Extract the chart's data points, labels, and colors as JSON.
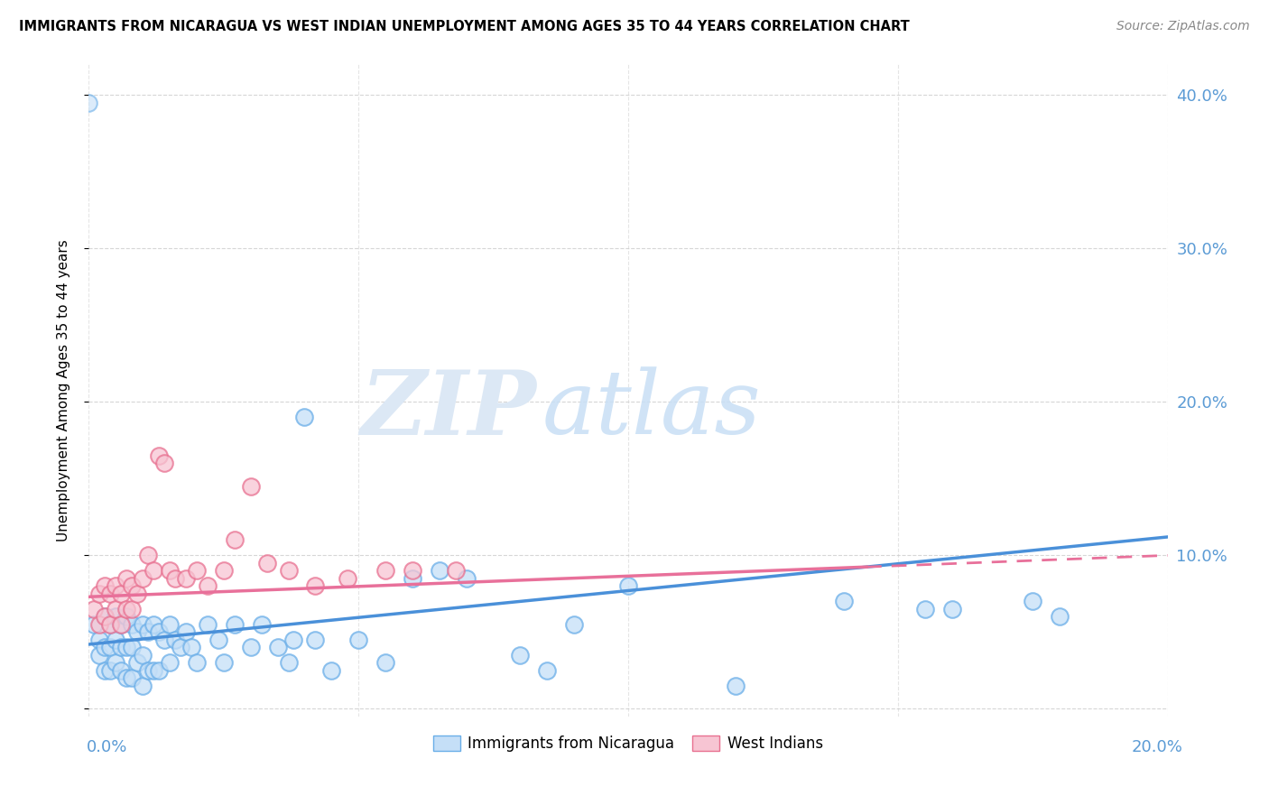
{
  "title": "IMMIGRANTS FROM NICARAGUA VS WEST INDIAN UNEMPLOYMENT AMONG AGES 35 TO 44 YEARS CORRELATION CHART",
  "source": "Source: ZipAtlas.com",
  "ylabel": "Unemployment Among Ages 35 to 44 years",
  "xlim": [
    0.0,
    0.2
  ],
  "ylim": [
    -0.005,
    0.42
  ],
  "watermark_zip": "ZIP",
  "watermark_atlas": "atlas",
  "color_nicaragua_fill": "#c5dff7",
  "color_nicaragua_edge": "#6aaee8",
  "color_west_indian_fill": "#f7c5d3",
  "color_west_indian_edge": "#e87090",
  "color_blue_line": "#4a90d9",
  "color_pink_line": "#e8709a",
  "color_text_blue": "#5b9bd5",
  "color_grid": "#cccccc",
  "background_color": "#ffffff",
  "fig_width": 14.06,
  "fig_height": 8.92,
  "dpi": 100,
  "nic_x": [
    0.001,
    0.002,
    0.002,
    0.003,
    0.003,
    0.003,
    0.004,
    0.004,
    0.004,
    0.005,
    0.005,
    0.005,
    0.006,
    0.006,
    0.006,
    0.007,
    0.007,
    0.007,
    0.008,
    0.008,
    0.008,
    0.009,
    0.009,
    0.01,
    0.01,
    0.01,
    0.011,
    0.011,
    0.012,
    0.012,
    0.013,
    0.013,
    0.014,
    0.015,
    0.015,
    0.016,
    0.017,
    0.018,
    0.019,
    0.02,
    0.022,
    0.024,
    0.025,
    0.027,
    0.03,
    0.032,
    0.035,
    0.037,
    0.04,
    0.042,
    0.045,
    0.05,
    0.055,
    0.06,
    0.065,
    0.07,
    0.038,
    0.08,
    0.085,
    0.09,
    0.1,
    0.12,
    0.14,
    0.16,
    0.175,
    0.18,
    0.155
  ],
  "nic_y": [
    0.055,
    0.045,
    0.035,
    0.06,
    0.04,
    0.025,
    0.055,
    0.04,
    0.025,
    0.06,
    0.045,
    0.03,
    0.055,
    0.04,
    0.025,
    0.06,
    0.04,
    0.02,
    0.055,
    0.04,
    0.02,
    0.05,
    0.03,
    0.055,
    0.035,
    0.015,
    0.05,
    0.025,
    0.055,
    0.025,
    0.05,
    0.025,
    0.045,
    0.055,
    0.03,
    0.045,
    0.04,
    0.05,
    0.04,
    0.03,
    0.055,
    0.045,
    0.03,
    0.055,
    0.04,
    0.055,
    0.04,
    0.03,
    0.19,
    0.045,
    0.025,
    0.045,
    0.03,
    0.085,
    0.09,
    0.085,
    0.045,
    0.035,
    0.025,
    0.055,
    0.08,
    0.015,
    0.07,
    0.065,
    0.07,
    0.06,
    0.065
  ],
  "wi_x": [
    0.001,
    0.002,
    0.002,
    0.003,
    0.003,
    0.004,
    0.004,
    0.005,
    0.005,
    0.006,
    0.006,
    0.007,
    0.007,
    0.008,
    0.008,
    0.009,
    0.01,
    0.011,
    0.012,
    0.013,
    0.014,
    0.015,
    0.016,
    0.018,
    0.02,
    0.022,
    0.025,
    0.027,
    0.03,
    0.033,
    0.037,
    0.042,
    0.048,
    0.055,
    0.06,
    0.068
  ],
  "wi_y": [
    0.065,
    0.075,
    0.055,
    0.08,
    0.06,
    0.075,
    0.055,
    0.08,
    0.065,
    0.075,
    0.055,
    0.085,
    0.065,
    0.08,
    0.065,
    0.075,
    0.085,
    0.1,
    0.09,
    0.165,
    0.16,
    0.09,
    0.085,
    0.085,
    0.09,
    0.08,
    0.09,
    0.11,
    0.145,
    0.095,
    0.09,
    0.08,
    0.085,
    0.09,
    0.09,
    0.09
  ],
  "nic_trend_x0": 0.0,
  "nic_trend_y0": 0.042,
  "nic_trend_x1": 0.2,
  "nic_trend_y1": 0.112,
  "wi_trend_x0": 0.0,
  "wi_trend_y0": 0.073,
  "wi_trend_x1": 0.2,
  "wi_trend_y1": 0.1
}
